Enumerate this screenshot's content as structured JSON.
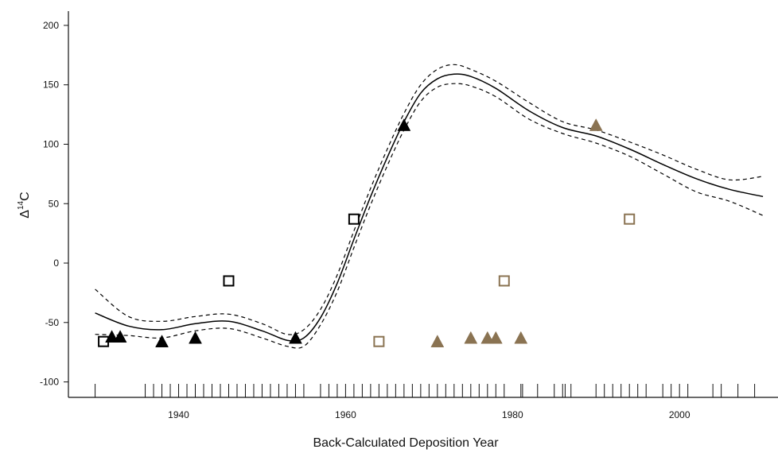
{
  "chart_data": {
    "type": "scatter",
    "title": "",
    "xlabel": "Back-Calculated Deposition Year",
    "ylabel_main": "Δ",
    "ylabel_sup": "14",
    "ylabel_tail": "C",
    "xlim": [
      1926.8,
      2011.8
    ],
    "ylim": [
      -113,
      212
    ],
    "xticks": [
      1940,
      1960,
      1980,
      2000
    ],
    "yticks": [
      -100,
      -50,
      0,
      50,
      100,
      150,
      200
    ],
    "colors": {
      "black_series": "#000000",
      "brown_series": "#8a7352",
      "curve": "#000000"
    },
    "series": [
      {
        "marker": "square-open",
        "color": "#000000",
        "points": [
          [
            1931,
            -66
          ],
          [
            1946,
            -15
          ],
          [
            1961,
            37
          ]
        ]
      },
      {
        "marker": "triangle-filled",
        "color": "#000000",
        "points": [
          [
            1932,
            -62
          ],
          [
            1933,
            -62
          ],
          [
            1938,
            -66
          ],
          [
            1942,
            -63
          ],
          [
            1954,
            -63
          ],
          [
            1967,
            116
          ]
        ]
      },
      {
        "marker": "square-open",
        "color": "#8a7352",
        "points": [
          [
            1964,
            -66
          ],
          [
            1979,
            -15
          ],
          [
            1994,
            37
          ]
        ]
      },
      {
        "marker": "triangle-filled",
        "color": "#8a7352",
        "points": [
          [
            1971,
            -66
          ],
          [
            1975,
            -63
          ],
          [
            1977,
            -63
          ],
          [
            1978,
            -63
          ],
          [
            1981,
            -63
          ],
          [
            1990,
            116
          ]
        ]
      }
    ],
    "fit_curve": {
      "x": [
        1930,
        1934,
        1938,
        1942,
        1946,
        1950,
        1953,
        1955,
        1957,
        1959,
        1961,
        1963,
        1965,
        1967,
        1969,
        1971,
        1973,
        1975,
        1978,
        1982,
        1986,
        1990,
        1994,
        1998,
        2002,
        2006,
        2010
      ],
      "y": [
        -42,
        -53,
        -56,
        -51,
        -49,
        -57,
        -65,
        -63,
        -46,
        -17,
        20,
        56,
        89,
        119,
        143,
        155,
        159,
        157,
        147,
        128,
        114,
        107,
        96,
        83,
        71,
        62,
        56
      ],
      "upper": [
        -22,
        -45,
        -49,
        -45,
        -43,
        -51,
        -60,
        -56,
        -39,
        -10,
        27,
        63,
        96,
        126,
        150,
        163,
        167,
        163,
        153,
        135,
        119,
        112,
        102,
        91,
        79,
        70,
        73
      ],
      "lower": [
        -60,
        -61,
        -63,
        -57,
        -55,
        -63,
        -70,
        -70,
        -52,
        -24,
        13,
        49,
        82,
        112,
        136,
        148,
        151,
        149,
        140,
        121,
        109,
        101,
        90,
        75,
        60,
        52,
        40
      ]
    },
    "rug_years": [
      1930,
      1936,
      1937,
      1938,
      1939,
      1940,
      1941,
      1942,
      1943,
      1944,
      1945,
      1946,
      1947,
      1948,
      1949,
      1950,
      1951,
      1952,
      1953,
      1954,
      1955,
      1957,
      1958,
      1959,
      1960,
      1961,
      1962,
      1963,
      1964,
      1965,
      1966,
      1967,
      1968,
      1969,
      1970,
      1971,
      1972,
      1973,
      1974,
      1975,
      1976,
      1977,
      1978,
      1979,
      1981,
      1981.2,
      1983,
      1985,
      1986,
      1986.3,
      1987,
      1990,
      1991,
      1992,
      1993,
      1994,
      1995,
      1996,
      1998,
      1999,
      2000,
      2001,
      2004,
      2005,
      2007,
      2009
    ]
  }
}
